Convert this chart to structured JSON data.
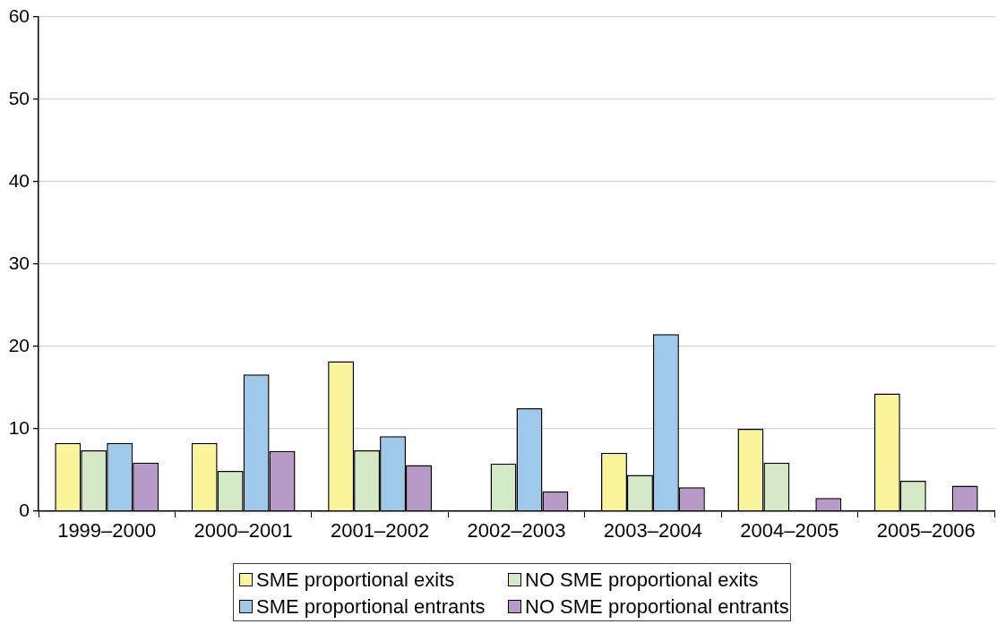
{
  "chart_data": {
    "type": "bar",
    "categories": [
      "1999–2000",
      "2000–2001",
      "2001–2002",
      "2002–2003",
      "2003–2004",
      "2004–2005",
      "2005–2006"
    ],
    "series": [
      {
        "name": "SME proportional exits",
        "color": "#faf49b",
        "values": [
          8.3,
          8.3,
          18.2,
          null,
          7.1,
          10.0,
          14.3
        ]
      },
      {
        "name": "NO SME proportional exits",
        "color": "#d4e9c5",
        "values": [
          7.4,
          4.9,
          7.4,
          5.8,
          4.4,
          5.9,
          3.7
        ]
      },
      {
        "name": "SME proportional entrants",
        "color": "#9fc9eb",
        "values": [
          8.3,
          16.6,
          9.1,
          12.5,
          21.5,
          null,
          null
        ]
      },
      {
        "name": "NO SME proportional entrants",
        "color": "#b89ac8",
        "values": [
          5.9,
          7.3,
          5.6,
          2.4,
          2.9,
          1.6,
          3.1
        ]
      }
    ],
    "ylim": [
      0,
      60
    ],
    "yticks": [
      0,
      10,
      20,
      30,
      40,
      50,
      60
    ],
    "grid": "y",
    "legend": "bottom"
  }
}
